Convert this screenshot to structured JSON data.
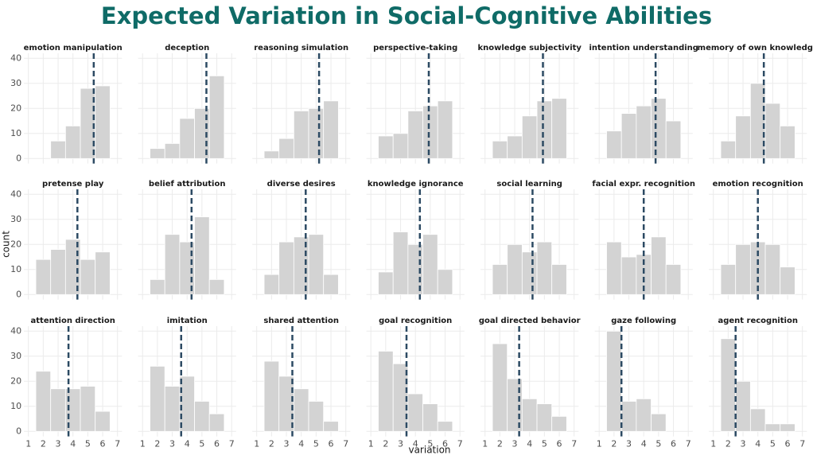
{
  "title": "Expected Variation in Social-Cognitive Abilities",
  "xlabel": "variation",
  "ylabel": "count",
  "chart_data": [
    {
      "type": "histogram",
      "title": "emotion manipulation",
      "bins": [
        1.5,
        2.5,
        3.5,
        4.5,
        5.5,
        6.5
      ],
      "values": [
        0,
        7,
        13,
        28,
        29
      ],
      "vline": 5.4,
      "color": "#d3d3d3",
      "vline_color": "#2c4a63",
      "xlim": [
        0.7,
        7.3
      ],
      "ylim": [
        -2,
        42
      ],
      "xticks": [
        1,
        2,
        3,
        4,
        5,
        6,
        7
      ],
      "yticks": [
        0,
        10,
        20,
        30,
        40
      ],
      "grid": true
    },
    {
      "type": "histogram",
      "title": "deception",
      "bins": [
        1.5,
        2.5,
        3.5,
        4.5,
        5.5,
        6.5
      ],
      "values": [
        4,
        6,
        16,
        20,
        33
      ],
      "vline": 5.3,
      "color": "#d3d3d3",
      "vline_color": "#2c4a63",
      "xlim": [
        0.7,
        7.3
      ],
      "ylim": [
        -2,
        42
      ],
      "xticks": [
        1,
        2,
        3,
        4,
        5,
        6,
        7
      ],
      "yticks": [
        0,
        10,
        20,
        30,
        40
      ],
      "grid": true
    },
    {
      "type": "histogram",
      "title": "reasoning simulation",
      "bins": [
        1.5,
        2.5,
        3.5,
        4.5,
        5.5,
        6.5
      ],
      "values": [
        3,
        8,
        19,
        20,
        23
      ],
      "vline": 5.2,
      "color": "#d3d3d3",
      "vline_color": "#2c4a63",
      "xlim": [
        0.7,
        7.3
      ],
      "ylim": [
        -2,
        42
      ],
      "xticks": [
        1,
        2,
        3,
        4,
        5,
        6,
        7
      ],
      "yticks": [
        0,
        10,
        20,
        30,
        40
      ],
      "grid": true
    },
    {
      "type": "histogram",
      "title": "perspective-taking",
      "bins": [
        1.5,
        2.5,
        3.5,
        4.5,
        5.5,
        6.5
      ],
      "values": [
        9,
        10,
        19,
        21,
        23
      ],
      "vline": 4.9,
      "color": "#d3d3d3",
      "vline_color": "#2c4a63",
      "xlim": [
        0.7,
        7.3
      ],
      "ylim": [
        -2,
        42
      ],
      "xticks": [
        1,
        2,
        3,
        4,
        5,
        6,
        7
      ],
      "yticks": [
        0,
        10,
        20,
        30,
        40
      ],
      "grid": true
    },
    {
      "type": "histogram",
      "title": "knowledge subjectivity",
      "bins": [
        1.5,
        2.5,
        3.5,
        4.5,
        5.5,
        6.5
      ],
      "values": [
        7,
        9,
        17,
        23,
        24
      ],
      "vline": 4.9,
      "color": "#d3d3d3",
      "vline_color": "#2c4a63",
      "xlim": [
        0.7,
        7.3
      ],
      "ylim": [
        -2,
        42
      ],
      "xticks": [
        1,
        2,
        3,
        4,
        5,
        6,
        7
      ],
      "yticks": [
        0,
        10,
        20,
        30,
        40
      ],
      "grid": true
    },
    {
      "type": "histogram",
      "title": "intention understanding",
      "bins": [
        1.5,
        2.5,
        3.5,
        4.5,
        5.5,
        6.5
      ],
      "values": [
        11,
        18,
        21,
        24,
        15
      ],
      "vline": 4.8,
      "color": "#d3d3d3",
      "vline_color": "#2c4a63",
      "xlim": [
        0.7,
        7.3
      ],
      "ylim": [
        -2,
        42
      ],
      "xticks": [
        1,
        2,
        3,
        4,
        5,
        6,
        7
      ],
      "yticks": [
        0,
        10,
        20,
        30,
        40
      ],
      "grid": true
    },
    {
      "type": "histogram",
      "title": "memory of own knowledge",
      "bins": [
        1.5,
        2.5,
        3.5,
        4.5,
        5.5,
        6.5
      ],
      "values": [
        7,
        17,
        30,
        22,
        13
      ],
      "vline": 4.4,
      "color": "#d3d3d3",
      "vline_color": "#2c4a63",
      "xlim": [
        0.7,
        7.3
      ],
      "ylim": [
        -2,
        42
      ],
      "xticks": [
        1,
        2,
        3,
        4,
        5,
        6,
        7
      ],
      "yticks": [
        0,
        10,
        20,
        30,
        40
      ],
      "grid": true
    },
    {
      "type": "histogram",
      "title": "pretense play",
      "bins": [
        1.5,
        2.5,
        3.5,
        4.5,
        5.5,
        6.5
      ],
      "values": [
        14,
        18,
        22,
        14,
        17
      ],
      "vline": 4.3,
      "color": "#d3d3d3",
      "vline_color": "#2c4a63",
      "xlim": [
        0.7,
        7.3
      ],
      "ylim": [
        -2,
        42
      ],
      "xticks": [
        1,
        2,
        3,
        4,
        5,
        6,
        7
      ],
      "yticks": [
        0,
        10,
        20,
        30,
        40
      ],
      "grid": true
    },
    {
      "type": "histogram",
      "title": "belief attribution",
      "bins": [
        1.5,
        2.5,
        3.5,
        4.5,
        5.5,
        6.5
      ],
      "values": [
        6,
        24,
        21,
        31,
        6
      ],
      "vline": 4.3,
      "color": "#d3d3d3",
      "vline_color": "#2c4a63",
      "xlim": [
        0.7,
        7.3
      ],
      "ylim": [
        -2,
        42
      ],
      "xticks": [
        1,
        2,
        3,
        4,
        5,
        6,
        7
      ],
      "yticks": [
        0,
        10,
        20,
        30,
        40
      ],
      "grid": true
    },
    {
      "type": "histogram",
      "title": "diverse desires",
      "bins": [
        1.5,
        2.5,
        3.5,
        4.5,
        5.5,
        6.5
      ],
      "values": [
        8,
        21,
        23,
        24,
        8
      ],
      "vline": 4.3,
      "color": "#d3d3d3",
      "vline_color": "#2c4a63",
      "xlim": [
        0.7,
        7.3
      ],
      "ylim": [
        -2,
        42
      ],
      "xticks": [
        1,
        2,
        3,
        4,
        5,
        6,
        7
      ],
      "yticks": [
        0,
        10,
        20,
        30,
        40
      ],
      "grid": true
    },
    {
      "type": "histogram",
      "title": "knowledge ignorance",
      "bins": [
        1.5,
        2.5,
        3.5,
        4.5,
        5.5,
        6.5
      ],
      "values": [
        9,
        25,
        20,
        24,
        10
      ],
      "vline": 4.3,
      "color": "#d3d3d3",
      "vline_color": "#2c4a63",
      "xlim": [
        0.7,
        7.3
      ],
      "ylim": [
        -2,
        42
      ],
      "xticks": [
        1,
        2,
        3,
        4,
        5,
        6,
        7
      ],
      "yticks": [
        0,
        10,
        20,
        30,
        40
      ],
      "grid": true
    },
    {
      "type": "histogram",
      "title": "social learning",
      "bins": [
        1.5,
        2.5,
        3.5,
        4.5,
        5.5,
        6.5
      ],
      "values": [
        12,
        20,
        17,
        21,
        12
      ],
      "vline": 4.2,
      "color": "#d3d3d3",
      "vline_color": "#2c4a63",
      "xlim": [
        0.7,
        7.3
      ],
      "ylim": [
        -2,
        42
      ],
      "xticks": [
        1,
        2,
        3,
        4,
        5,
        6,
        7
      ],
      "yticks": [
        0,
        10,
        20,
        30,
        40
      ],
      "grid": true
    },
    {
      "type": "histogram",
      "title": "facial expr. recognition",
      "bins": [
        1.5,
        2.5,
        3.5,
        4.5,
        5.5,
        6.5
      ],
      "values": [
        21,
        15,
        16,
        23,
        12
      ],
      "vline": 4.0,
      "color": "#d3d3d3",
      "vline_color": "#2c4a63",
      "xlim": [
        0.7,
        7.3
      ],
      "ylim": [
        -2,
        42
      ],
      "xticks": [
        1,
        2,
        3,
        4,
        5,
        6,
        7
      ],
      "yticks": [
        0,
        10,
        20,
        30,
        40
      ],
      "grid": true
    },
    {
      "type": "histogram",
      "title": "emotion recognition",
      "bins": [
        1.5,
        2.5,
        3.5,
        4.5,
        5.5,
        6.5
      ],
      "values": [
        12,
        20,
        21,
        20,
        11
      ],
      "vline": 4.0,
      "color": "#d3d3d3",
      "vline_color": "#2c4a63",
      "xlim": [
        0.7,
        7.3
      ],
      "ylim": [
        -2,
        42
      ],
      "xticks": [
        1,
        2,
        3,
        4,
        5,
        6,
        7
      ],
      "yticks": [
        0,
        10,
        20,
        30,
        40
      ],
      "grid": true
    },
    {
      "type": "histogram",
      "title": "attention direction",
      "bins": [
        1.5,
        2.5,
        3.5,
        4.5,
        5.5,
        6.5
      ],
      "values": [
        24,
        17,
        17,
        18,
        8
      ],
      "vline": 3.7,
      "color": "#d3d3d3",
      "vline_color": "#2c4a63",
      "xlim": [
        0.7,
        7.3
      ],
      "ylim": [
        -2,
        42
      ],
      "xticks": [
        1,
        2,
        3,
        4,
        5,
        6,
        7
      ],
      "yticks": [
        0,
        10,
        20,
        30,
        40
      ],
      "grid": true
    },
    {
      "type": "histogram",
      "title": "imitation",
      "bins": [
        1.5,
        2.5,
        3.5,
        4.5,
        5.5,
        6.5
      ],
      "values": [
        26,
        18,
        22,
        12,
        7
      ],
      "vline": 3.6,
      "color": "#d3d3d3",
      "vline_color": "#2c4a63",
      "xlim": [
        0.7,
        7.3
      ],
      "ylim": [
        -2,
        42
      ],
      "xticks": [
        1,
        2,
        3,
        4,
        5,
        6,
        7
      ],
      "yticks": [
        0,
        10,
        20,
        30,
        40
      ],
      "grid": true
    },
    {
      "type": "histogram",
      "title": "shared attention",
      "bins": [
        1.5,
        2.5,
        3.5,
        4.5,
        5.5,
        6.5
      ],
      "values": [
        28,
        22,
        17,
        12,
        4
      ],
      "vline": 3.4,
      "color": "#d3d3d3",
      "vline_color": "#2c4a63",
      "xlim": [
        0.7,
        7.3
      ],
      "ylim": [
        -2,
        42
      ],
      "xticks": [
        1,
        2,
        3,
        4,
        5,
        6,
        7
      ],
      "yticks": [
        0,
        10,
        20,
        30,
        40
      ],
      "grid": true
    },
    {
      "type": "histogram",
      "title": "goal recognition",
      "bins": [
        1.5,
        2.5,
        3.5,
        4.5,
        5.5,
        6.5
      ],
      "values": [
        32,
        27,
        15,
        11,
        4
      ],
      "vline": 3.4,
      "color": "#d3d3d3",
      "vline_color": "#2c4a63",
      "xlim": [
        0.7,
        7.3
      ],
      "ylim": [
        -2,
        42
      ],
      "xticks": [
        1,
        2,
        3,
        4,
        5,
        6,
        7
      ],
      "yticks": [
        0,
        10,
        20,
        30,
        40
      ],
      "grid": true
    },
    {
      "type": "histogram",
      "title": "goal directed behavior",
      "bins": [
        1.5,
        2.5,
        3.5,
        4.5,
        5.5,
        6.5
      ],
      "values": [
        35,
        21,
        13,
        11,
        6
      ],
      "vline": 3.3,
      "color": "#d3d3d3",
      "vline_color": "#2c4a63",
      "xlim": [
        0.7,
        7.3
      ],
      "ylim": [
        -2,
        42
      ],
      "xticks": [
        1,
        2,
        3,
        4,
        5,
        6,
        7
      ],
      "yticks": [
        0,
        10,
        20,
        30,
        40
      ],
      "grid": true
    },
    {
      "type": "histogram",
      "title": "gaze following",
      "bins": [
        1.5,
        2.5,
        3.5,
        4.5,
        5.5,
        6.5
      ],
      "values": [
        40,
        12,
        13,
        7,
        0
      ],
      "vline": 2.5,
      "color": "#d3d3d3",
      "vline_color": "#2c4a63",
      "xlim": [
        0.7,
        7.3
      ],
      "ylim": [
        -2,
        42
      ],
      "xticks": [
        1,
        2,
        3,
        4,
        5,
        6,
        7
      ],
      "yticks": [
        0,
        10,
        20,
        30,
        40
      ],
      "grid": true
    },
    {
      "type": "histogram",
      "title": "agent recognition",
      "bins": [
        1.5,
        2.5,
        3.5,
        4.5,
        5.5,
        6.5
      ],
      "values": [
        37,
        20,
        9,
        3,
        3
      ],
      "vline": 2.5,
      "color": "#d3d3d3",
      "vline_color": "#2c4a63",
      "xlim": [
        0.7,
        7.3
      ],
      "ylim": [
        -2,
        42
      ],
      "xticks": [
        1,
        2,
        3,
        4,
        5,
        6,
        7
      ],
      "yticks": [
        0,
        10,
        20,
        30,
        40
      ],
      "grid": true
    }
  ]
}
